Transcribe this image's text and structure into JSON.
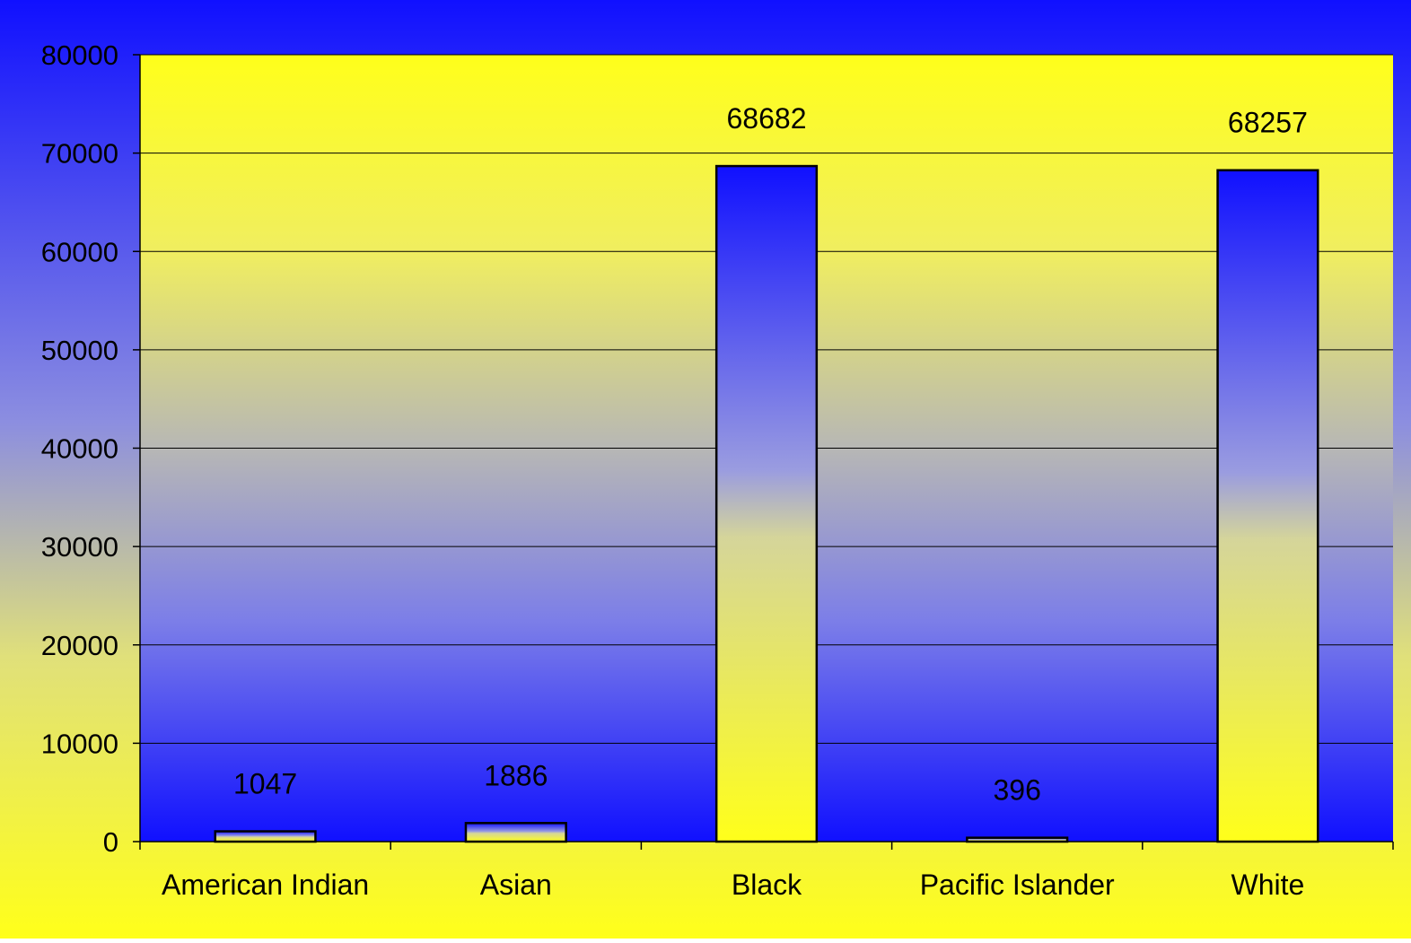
{
  "chart_data": {
    "type": "bar",
    "title": "",
    "xlabel": "",
    "ylabel": "",
    "categories": [
      "American Indian",
      "Asian",
      "Black",
      "Pacific Islander",
      "White"
    ],
    "values": [
      1047,
      1886,
      68682,
      396,
      68257
    ],
    "data_labels": [
      "1047",
      "1886",
      "68682",
      "396",
      "68257"
    ],
    "ylim": [
      0,
      80000
    ],
    "yticks": [
      0,
      10000,
      20000,
      30000,
      40000,
      50000,
      60000,
      70000,
      80000
    ],
    "ytick_labels": [
      "0",
      "10000",
      "20000",
      "30000",
      "40000",
      "50000",
      "60000",
      "70000",
      "80000"
    ],
    "grid": true,
    "legend": "none"
  },
  "colors": {
    "blue": "#1010ff",
    "yellow": "#ffff1a",
    "gridline": "#000000",
    "bar_outline": "#000000",
    "text": "#000000"
  }
}
